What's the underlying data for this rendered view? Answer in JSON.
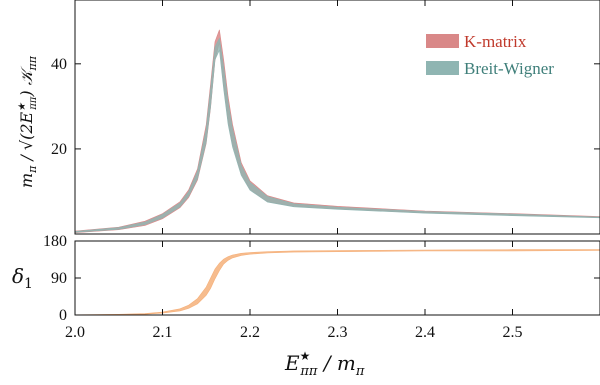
{
  "chart_data": [
    {
      "type": "area",
      "ylabel": "m_π / √(2E*ππ) 𝒦ππ",
      "ylim": [
        0,
        55
      ],
      "yticks": [
        20,
        40
      ],
      "xlim": [
        2.0,
        2.6
      ],
      "legend": {
        "placement": "top-right"
      },
      "series": [
        {
          "name": "K-matrix",
          "color": "#d98888",
          "x": [
            2.0,
            2.05,
            2.08,
            2.1,
            2.12,
            2.13,
            2.14,
            2.15,
            2.155,
            2.16,
            2.165,
            2.17,
            2.175,
            2.18,
            2.19,
            2.2,
            2.22,
            2.25,
            2.3,
            2.4,
            2.5,
            2.6
          ],
          "lower": [
            0.3,
            1.0,
            2.0,
            3.6,
            6.2,
            8.6,
            12.7,
            21.3,
            29.7,
            40.8,
            45.0,
            35.1,
            26.7,
            21.2,
            14.2,
            10.5,
            7.6,
            6.5,
            5.9,
            5.0,
            4.4,
            3.9
          ],
          "upper": [
            0.7,
            1.6,
            3.0,
            4.8,
            7.6,
            10.4,
            15.3,
            25.7,
            35.3,
            45.2,
            48.0,
            40.9,
            32.3,
            25.8,
            16.8,
            12.5,
            9.0,
            7.3,
            6.5,
            5.4,
            4.8,
            4.1
          ]
        },
        {
          "name": "Breit-Wigner",
          "color": "#8fb5b2",
          "x": [
            2.0,
            2.05,
            2.08,
            2.1,
            2.12,
            2.13,
            2.14,
            2.15,
            2.155,
            2.16,
            2.165,
            2.17,
            2.175,
            2.18,
            2.19,
            2.2,
            2.22,
            2.25,
            2.3,
            2.4,
            2.5,
            2.6
          ],
          "lower": [
            0.4,
            1.1,
            2.2,
            3.8,
            6.4,
            8.9,
            13.0,
            21.6,
            30.0,
            41.0,
            43.2,
            34.0,
            25.8,
            20.5,
            13.8,
            10.3,
            7.5,
            6.4,
            5.8,
            4.9,
            4.3,
            3.8
          ],
          "upper": [
            0.6,
            1.5,
            2.8,
            4.6,
            7.3,
            10.0,
            14.8,
            24.8,
            34.2,
            44.0,
            46.0,
            39.2,
            31.0,
            24.8,
            16.2,
            12.1,
            8.8,
            7.1,
            6.3,
            5.3,
            4.7,
            4.0
          ]
        }
      ]
    },
    {
      "type": "area",
      "ylabel": "δ₁",
      "xlabel": "E*ππ / m_π",
      "ylim": [
        0,
        180
      ],
      "yticks": [
        0,
        90,
        180
      ],
      "xlim": [
        2.0,
        2.6
      ],
      "xticks": [
        2.0,
        2.1,
        2.2,
        2.3,
        2.4,
        2.5
      ],
      "xticklabels": [
        "2.0",
        "2.1",
        "2.2",
        "2.3",
        "2.4",
        "2.5"
      ],
      "series": [
        {
          "color": "#f5b07a",
          "x": [
            2.0,
            2.05,
            2.08,
            2.1,
            2.12,
            2.13,
            2.14,
            2.15,
            2.155,
            2.16,
            2.165,
            2.17,
            2.175,
            2.18,
            2.19,
            2.2,
            2.22,
            2.25,
            2.3,
            2.4,
            2.5,
            2.6
          ],
          "lower": [
            0.2,
            0.8,
            2.0,
            4.5,
            10,
            16,
            27,
            48,
            65,
            88,
            108,
            124,
            133,
            139,
            145,
            148,
            151,
            153,
            154,
            156,
            156,
            157
          ],
          "upper": [
            0.6,
            1.6,
            3.5,
            7.0,
            15,
            24,
            40,
            68,
            90,
            112,
            126,
            136,
            142,
            146,
            150,
            152,
            154,
            156,
            157,
            158,
            159,
            159
          ]
        }
      ]
    }
  ]
}
